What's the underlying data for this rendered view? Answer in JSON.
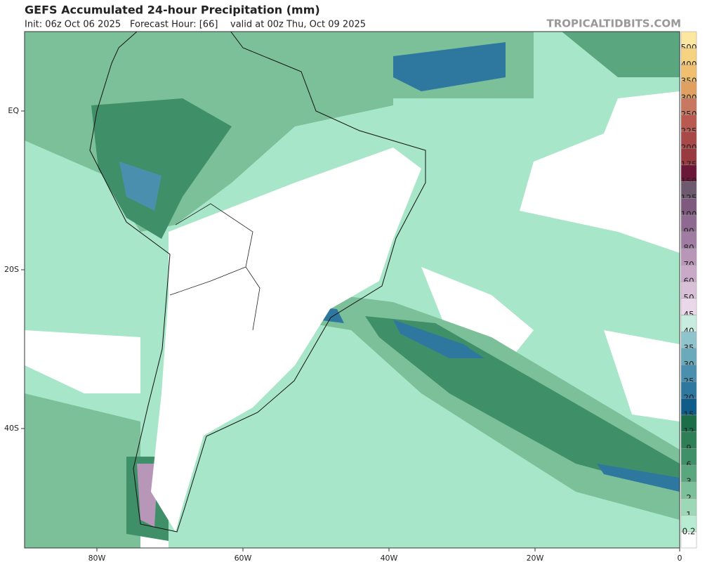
{
  "header": {
    "title": "GEFS Accumulated 24-hour Precipitation (mm)",
    "init": "Init: 06z Oct 06 2025",
    "forecast_hour": "Forecast Hour: [66]",
    "valid": "valid at 00z Thu, Oct 09 2025",
    "watermark": "TROPICALTIDBITS.COM"
  },
  "map": {
    "lat_labels": [
      "EQ",
      "20S",
      "40S"
    ],
    "lon_labels": [
      "80W",
      "60W",
      "40W",
      "20W",
      "0"
    ]
  },
  "colorbar": {
    "levels": [
      {
        "label": "500",
        "color": "#fbe7a0"
      },
      {
        "label": "400",
        "color": "#f6d381"
      },
      {
        "label": "350",
        "color": "#f0c070"
      },
      {
        "label": "300",
        "color": "#e0a060"
      },
      {
        "label": "250",
        "color": "#c87860"
      },
      {
        "label": "225",
        "color": "#b85a50"
      },
      {
        "label": "200",
        "color": "#a84848"
      },
      {
        "label": "175",
        "color": "#983a40"
      },
      {
        "label": "150",
        "color": "#6b1737"
      },
      {
        "label": "125",
        "color": "#6d5a6e"
      },
      {
        "label": "100",
        "color": "#7d5a7e"
      },
      {
        "label": "90",
        "color": "#8e6a90"
      },
      {
        "label": "80",
        "color": "#a07ca2"
      },
      {
        "label": "70",
        "color": "#b896b8"
      },
      {
        "label": "60",
        "color": "#c8aac8"
      },
      {
        "label": "50",
        "color": "#d8c0d8"
      },
      {
        "label": "45",
        "color": "#ead8ea"
      },
      {
        "label": "40",
        "color": "#c8ece0"
      },
      {
        "label": "35",
        "color": "#90c4cc"
      },
      {
        "label": "30",
        "color": "#6aaabb"
      },
      {
        "label": "25",
        "color": "#4a90ae"
      },
      {
        "label": "20",
        "color": "#2e78a0"
      },
      {
        "label": "15",
        "color": "#0f5c88"
      },
      {
        "label": "12",
        "color": "#1b6e48"
      },
      {
        "label": "9",
        "color": "#2e7e56"
      },
      {
        "label": "6",
        "color": "#3f9068"
      },
      {
        "label": "3",
        "color": "#5aa67e"
      },
      {
        "label": "2",
        "color": "#7cc09a"
      },
      {
        "label": "1",
        "color": "#9cd8b6"
      },
      {
        "label": "0.2",
        "color": "#b8ecd0"
      }
    ]
  }
}
